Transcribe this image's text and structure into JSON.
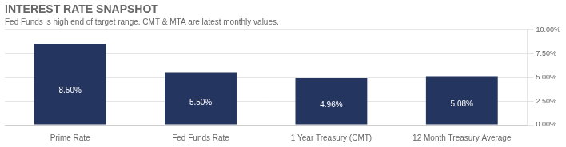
{
  "chart_data": {
    "type": "bar",
    "title": "INTEREST RATE SNAPSHOT",
    "subtitle": "Fed Funds is high end of target range. CMT & MTA are latest monthly values.",
    "categories": [
      "Prime Rate",
      "Fed Funds Rate",
      "1 Year Treasury (CMT)",
      "12 Month Treasury Average"
    ],
    "values": [
      8.5,
      5.5,
      4.96,
      5.08
    ],
    "value_labels": [
      "8.50%",
      "5.50%",
      "4.96%",
      "5.08%"
    ],
    "data_labels": true,
    "color": "#243560",
    "ylim": [
      0,
      10
    ],
    "yticks": [
      {
        "value": 0,
        "label": "0.00%"
      },
      {
        "value": 2.5,
        "label": "2.50%"
      },
      {
        "value": 5.0,
        "label": "5.00%"
      },
      {
        "value": 7.5,
        "label": "7.50%"
      },
      {
        "value": 10.0,
        "label": "10.00%"
      }
    ],
    "grid": true
  }
}
